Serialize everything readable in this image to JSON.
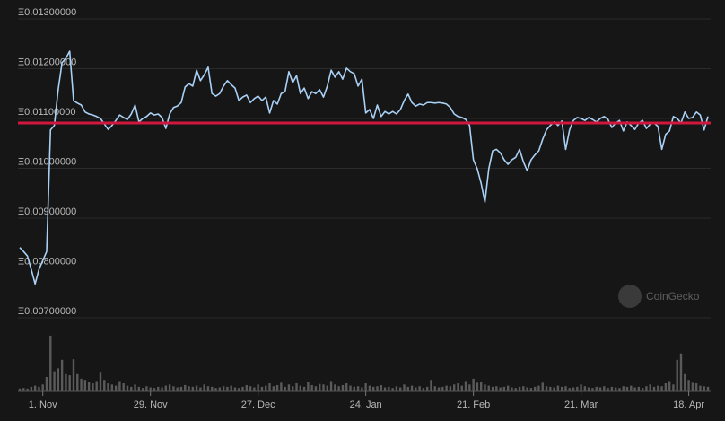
{
  "chart_data": {
    "type": "line",
    "watermark": "CoinGecko",
    "xlim": [
      0,
      179
    ],
    "xticks": [
      {
        "value": 6,
        "label": "1. Nov"
      },
      {
        "value": 34,
        "label": "29. Nov"
      },
      {
        "value": 62,
        "label": "27. Dec"
      },
      {
        "value": 90,
        "label": "24. Jan"
      },
      {
        "value": 118,
        "label": "21. Feb"
      },
      {
        "value": 146,
        "label": "21. Mar"
      },
      {
        "value": 174,
        "label": "18. Apr"
      }
    ],
    "ylim": [
      0.007,
      0.013
    ],
    "yticks": [
      {
        "value": 0.013,
        "label": "Ξ0.01300000"
      },
      {
        "value": 0.012,
        "label": "Ξ0.01200000"
      },
      {
        "value": 0.011,
        "label": "Ξ0.01100000"
      },
      {
        "value": 0.01,
        "label": "Ξ0.01000000"
      },
      {
        "value": 0.009,
        "label": "Ξ0.00900000"
      },
      {
        "value": 0.008,
        "label": "Ξ0.00800000"
      },
      {
        "value": 0.007,
        "label": "Ξ0.00700000"
      }
    ],
    "grid": true,
    "series": [
      {
        "color": "#a9d0f5",
        "values": [
          0.00841,
          0.00833,
          0.00824,
          0.00797,
          0.00768,
          0.00797,
          0.00815,
          0.00833,
          0.01077,
          0.01086,
          0.01158,
          0.01212,
          0.01221,
          0.01235,
          0.01136,
          0.01131,
          0.01127,
          0.01113,
          0.01109,
          0.01107,
          0.01104,
          0.011,
          0.01089,
          0.01078,
          0.01086,
          0.01096,
          0.01107,
          0.01102,
          0.01098,
          0.01109,
          0.01127,
          0.01093,
          0.011,
          0.01104,
          0.01111,
          0.01107,
          0.01109,
          0.01102,
          0.0108,
          0.01109,
          0.01122,
          0.01125,
          0.01132,
          0.01163,
          0.0117,
          0.01165,
          0.01197,
          0.01176,
          0.01188,
          0.01203,
          0.0115,
          0.01145,
          0.0115,
          0.01165,
          0.01176,
          0.01168,
          0.01161,
          0.01136,
          0.01143,
          0.01147,
          0.01132,
          0.0114,
          0.01145,
          0.01136,
          0.01143,
          0.01111,
          0.01136,
          0.01129,
          0.0115,
          0.01154,
          0.01194,
          0.01172,
          0.01186,
          0.0115,
          0.01161,
          0.0114,
          0.01154,
          0.0115,
          0.01158,
          0.01143,
          0.01165,
          0.01197,
          0.01183,
          0.01194,
          0.01179,
          0.01201,
          0.01194,
          0.0119,
          0.01165,
          0.01179,
          0.01111,
          0.01118,
          0.011,
          0.01127,
          0.01104,
          0.01114,
          0.01109,
          0.01114,
          0.01109,
          0.01118,
          0.01136,
          0.01149,
          0.01132,
          0.01125,
          0.01129,
          0.01127,
          0.01132,
          0.01132,
          0.01131,
          0.01132,
          0.01131,
          0.01129,
          0.01122,
          0.01109,
          0.01104,
          0.01102,
          0.01098,
          0.01086,
          0.01017,
          0.00999,
          0.0097,
          0.00932,
          0.00999,
          0.01035,
          0.01038,
          0.01031,
          0.01017,
          0.01008,
          0.01017,
          0.01022,
          0.01038,
          0.01013,
          0.00995,
          0.01017,
          0.01027,
          0.01035,
          0.01058,
          0.01077,
          0.01086,
          0.01093,
          0.01086,
          0.01095,
          0.01038,
          0.01077,
          0.01096,
          0.01102,
          0.011,
          0.01096,
          0.01102,
          0.01098,
          0.01093,
          0.011,
          0.01104,
          0.01098,
          0.01082,
          0.01091,
          0.01096,
          0.01075,
          0.01093,
          0.01086,
          0.01078,
          0.01091,
          0.01096,
          0.0108,
          0.01089,
          0.01091,
          0.01084,
          0.01038,
          0.01068,
          0.01075,
          0.01104,
          0.011,
          0.01091,
          0.01113,
          0.011,
          0.01102,
          0.01113,
          0.01107,
          0.01077,
          0.01104
        ]
      }
    ],
    "reference_line": {
      "value": 0.01091,
      "color": "#d0173d"
    },
    "volume": {
      "color": "#5a5a5a",
      "ylim": [
        0,
        100
      ],
      "values": [
        5,
        6,
        5,
        8,
        10,
        8,
        12,
        25,
        97,
        35,
        40,
        55,
        30,
        28,
        56,
        30,
        22,
        20,
        16,
        14,
        18,
        34,
        20,
        14,
        12,
        10,
        18,
        14,
        10,
        8,
        12,
        8,
        6,
        9,
        7,
        6,
        8,
        7,
        10,
        12,
        9,
        7,
        8,
        11,
        9,
        8,
        10,
        7,
        12,
        9,
        8,
        6,
        7,
        9,
        8,
        10,
        7,
        6,
        8,
        11,
        9,
        7,
        12,
        8,
        10,
        14,
        9,
        11,
        15,
        8,
        12,
        9,
        14,
        10,
        8,
        16,
        11,
        9,
        13,
        12,
        10,
        18,
        12,
        9,
        11,
        14,
        10,
        8,
        9,
        7,
        14,
        10,
        8,
        9,
        11,
        7,
        8,
        6,
        9,
        7,
        12,
        8,
        10,
        7,
        9,
        6,
        8,
        20,
        9,
        7,
        8,
        10,
        9,
        12,
        14,
        10,
        18,
        12,
        22,
        15,
        16,
        12,
        10,
        8,
        9,
        7,
        8,
        10,
        7,
        6,
        8,
        9,
        7,
        6,
        8,
        10,
        15,
        9,
        8,
        7,
        10,
        8,
        9,
        6,
        7,
        8,
        12,
        9,
        7,
        6,
        8,
        7,
        9,
        6,
        8,
        7,
        6,
        9,
        8,
        10,
        7,
        8,
        6,
        9,
        12,
        8,
        10,
        9,
        14,
        18,
        12,
        55,
        66,
        30,
        20,
        15,
        14,
        10,
        9,
        8
      ]
    }
  }
}
